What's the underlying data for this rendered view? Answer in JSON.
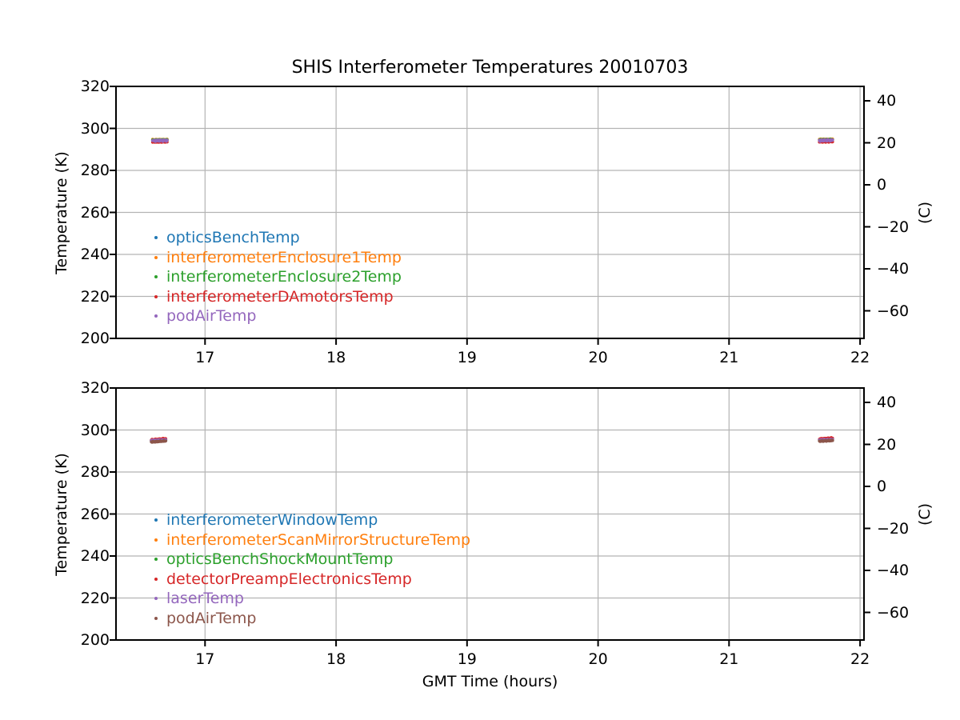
{
  "page": {
    "title": "SHIS Interferometer Temperatures 20010703",
    "xlabel": "GMT Time (hours)",
    "ylabel_left": "Temperature (K)",
    "ylabel_right": "(C)"
  },
  "chart_data": [
    {
      "type": "scatter",
      "subplot": "top",
      "marker": "point",
      "grid": true,
      "legend_location": "lower left inside",
      "xlim": [
        16.32,
        22.03
      ],
      "xticks": [
        17,
        18,
        19,
        20,
        21,
        22
      ],
      "ylim_kelvin": [
        200,
        320
      ],
      "yticks_left": [
        200,
        220,
        240,
        260,
        280,
        300,
        320
      ],
      "yticks_right_celsius": [
        -60,
        -40,
        -20,
        0,
        20,
        40
      ],
      "yticks_right_labels": [
        "−60",
        "−40",
        "−20",
        "0",
        "20",
        "40"
      ],
      "ylabel_left": "Temperature (K)",
      "ylabel_right": "(C)",
      "series": [
        {
          "name": "opticsBenchTemp",
          "color": "#1f77b4",
          "spread_K": 0.22,
          "segments": [
            {
              "x0": 16.6,
              "x1": 16.71,
              "k0": 294.35,
              "k1": 294.45,
              "n": 22
            },
            {
              "x0": 21.69,
              "x1": 21.79,
              "k0": 294.5,
              "k1": 294.55,
              "n": 22
            }
          ]
        },
        {
          "name": "interferometerEnclosure1Temp",
          "color": "#ff7f0e",
          "spread_K": 0.22,
          "segments": [
            {
              "x0": 16.6,
              "x1": 16.71,
              "k0": 294.6,
              "k1": 294.7,
              "n": 22
            },
            {
              "x0": 21.69,
              "x1": 21.79,
              "k0": 294.75,
              "k1": 294.85,
              "n": 22
            }
          ]
        },
        {
          "name": "interferometerEnclosure2Temp",
          "color": "#2ca02c",
          "spread_K": 0.22,
          "segments": [
            {
              "x0": 16.6,
              "x1": 16.71,
              "k0": 294.45,
              "k1": 294.55,
              "n": 22
            },
            {
              "x0": 21.69,
              "x1": 21.79,
              "k0": 294.6,
              "k1": 294.7,
              "n": 22
            }
          ]
        },
        {
          "name": "interferometerDAmotorsTemp",
          "color": "#d62728",
          "spread_K": 0.25,
          "segments": [
            {
              "x0": 16.6,
              "x1": 16.71,
              "k0": 293.5,
              "k1": 293.6,
              "n": 22
            },
            {
              "x0": 21.69,
              "x1": 21.79,
              "k0": 293.6,
              "k1": 293.7,
              "n": 22
            }
          ]
        },
        {
          "name": "podAirTemp",
          "color": "#9467bd",
          "spread_K": 0.45,
          "segments": [
            {
              "x0": 16.6,
              "x1": 16.71,
              "k0": 294.1,
              "k1": 294.3,
              "n": 22
            },
            {
              "x0": 21.69,
              "x1": 21.79,
              "k0": 294.2,
              "k1": 294.4,
              "n": 22
            }
          ]
        }
      ]
    },
    {
      "type": "scatter",
      "subplot": "bottom",
      "marker": "point",
      "grid": true,
      "legend_location": "lower left inside",
      "xlim": [
        16.32,
        22.03
      ],
      "xticks": [
        17,
        18,
        19,
        20,
        21,
        22
      ],
      "ylim_kelvin": [
        200,
        320
      ],
      "yticks_left": [
        200,
        220,
        240,
        260,
        280,
        300,
        320
      ],
      "yticks_right_celsius": [
        -60,
        -40,
        -20,
        0,
        20,
        40
      ],
      "yticks_right_labels": [
        "−60",
        "−40",
        "−20",
        "0",
        "20",
        "40"
      ],
      "ylabel_left": "Temperature (K)",
      "ylabel_right": "(C)",
      "series": [
        {
          "name": "interferometerWindowTemp",
          "color": "#1f77b4",
          "spread_K": 0.2,
          "segments": [
            {
              "x0": 16.59,
              "x1": 16.7,
              "k0": 294.9,
              "k1": 295.2,
              "n": 22
            },
            {
              "x0": 21.69,
              "x1": 21.79,
              "k0": 295.2,
              "k1": 295.4,
              "n": 22
            }
          ]
        },
        {
          "name": "interferometerScanMirrorStructureTemp",
          "color": "#ff7f0e",
          "spread_K": 0.2,
          "segments": [
            {
              "x0": 16.59,
              "x1": 16.7,
              "k0": 295.0,
              "k1": 295.3,
              "n": 22
            },
            {
              "x0": 21.69,
              "x1": 21.79,
              "k0": 295.3,
              "k1": 295.5,
              "n": 22
            }
          ]
        },
        {
          "name": "opticsBenchShockMountTemp",
          "color": "#2ca02c",
          "spread_K": 0.2,
          "segments": [
            {
              "x0": 16.59,
              "x1": 16.7,
              "k0": 294.8,
              "k1": 295.1,
              "n": 22
            },
            {
              "x0": 21.69,
              "x1": 21.79,
              "k0": 295.1,
              "k1": 295.3,
              "n": 22
            }
          ]
        },
        {
          "name": "detectorPreampElectronicsTemp",
          "color": "#d62728",
          "spread_K": 0.28,
          "segments": [
            {
              "x0": 16.59,
              "x1": 16.7,
              "k0": 295.3,
              "k1": 295.9,
              "n": 22
            },
            {
              "x0": 21.69,
              "x1": 21.79,
              "k0": 295.7,
              "k1": 296.2,
              "n": 22
            }
          ]
        },
        {
          "name": "laserTemp",
          "color": "#9467bd",
          "spread_K": 0.25,
          "segments": [
            {
              "x0": 16.59,
              "x1": 16.7,
              "k0": 295.0,
              "k1": 295.3,
              "n": 22
            },
            {
              "x0": 21.69,
              "x1": 21.79,
              "k0": 295.2,
              "k1": 295.5,
              "n": 22
            }
          ]
        },
        {
          "name": "podAirTemp",
          "color": "#8c564b",
          "spread_K": 0.3,
          "segments": [
            {
              "x0": 16.59,
              "x1": 16.7,
              "k0": 294.3,
              "k1": 294.8,
              "n": 22
            },
            {
              "x0": 21.69,
              "x1": 21.79,
              "k0": 294.7,
              "k1": 295.0,
              "n": 22
            }
          ]
        }
      ]
    }
  ],
  "style": {
    "grid_color": "#b4b4b4",
    "spine_color": "#000000",
    "text_color": "#000000",
    "background": "#ffffff"
  }
}
